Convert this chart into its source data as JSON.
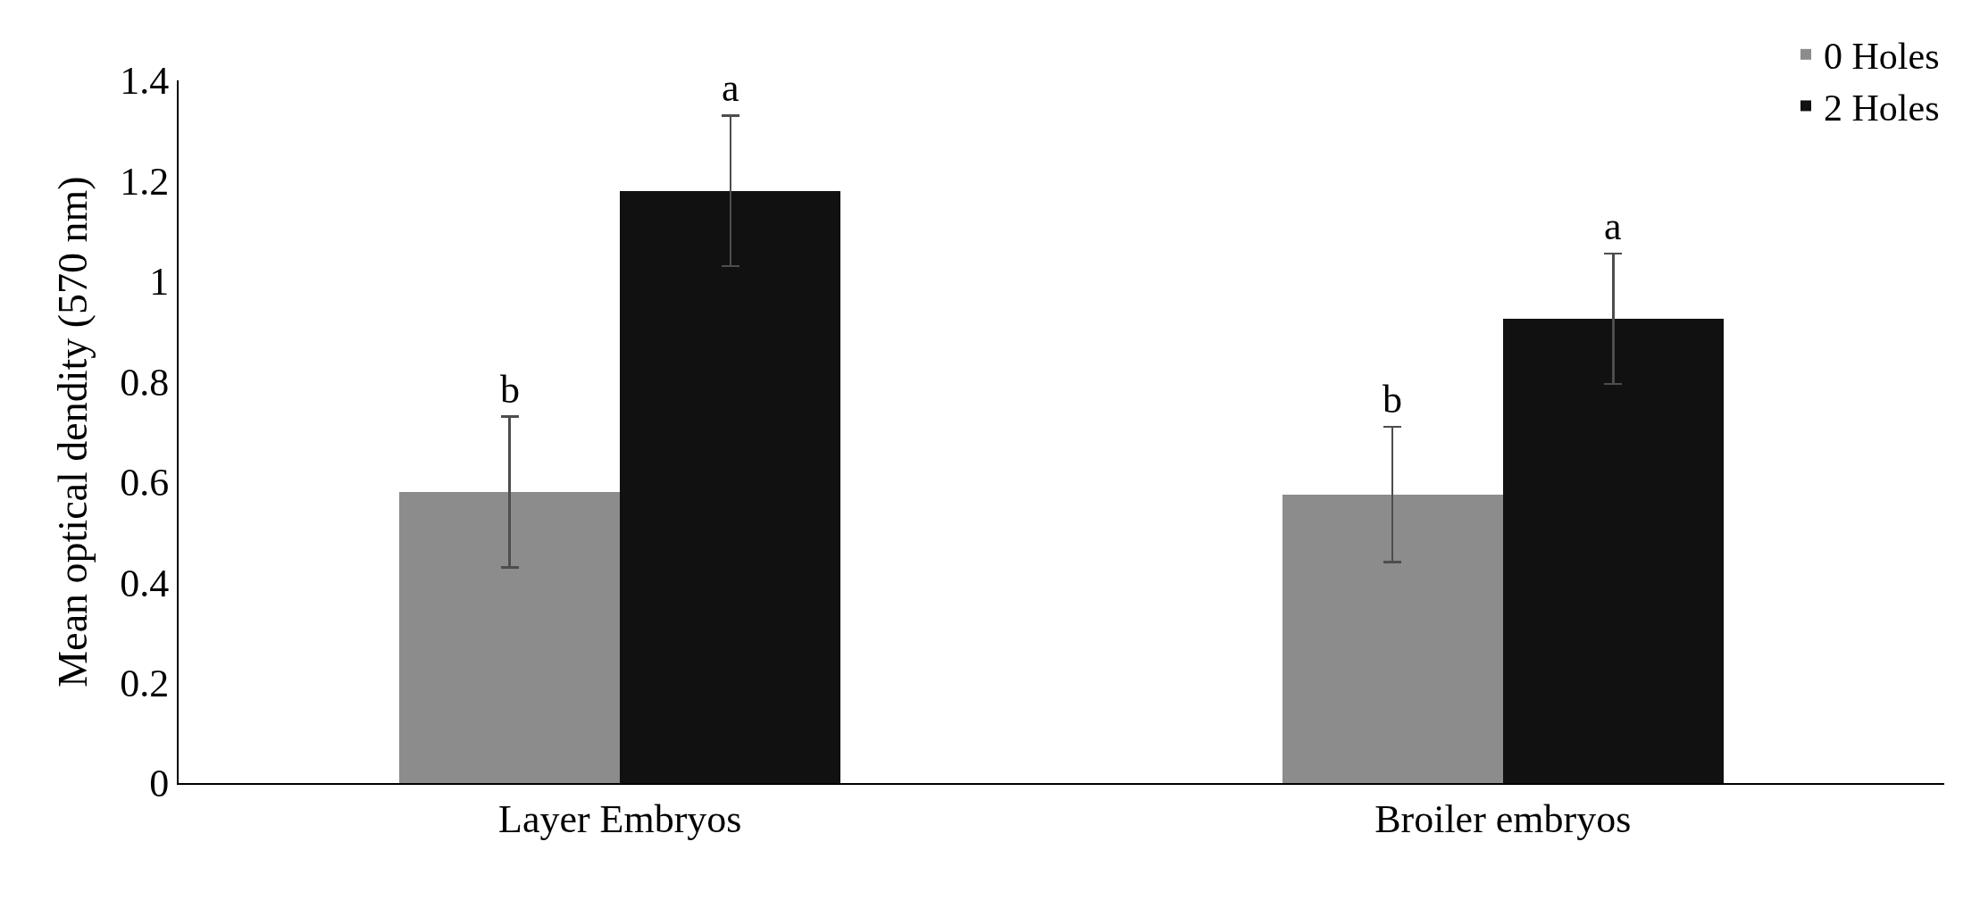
{
  "chart_data": {
    "type": "bar",
    "ylabel": "Mean optical dendity (570 nm)",
    "categories": [
      "Layer Embryos",
      "Broiler embryos"
    ],
    "series": [
      {
        "name": "0 Holes",
        "color": "#8c8c8c",
        "values": [
          0.58,
          0.575
        ],
        "errors": [
          0.15,
          0.135
        ]
      },
      {
        "name": "2 Holes",
        "color": "#111111",
        "values": [
          1.18,
          0.925
        ],
        "errors": [
          0.15,
          0.13
        ]
      }
    ],
    "annotations": [
      "b",
      "a",
      "b",
      "a"
    ],
    "ylim": [
      0,
      1.4
    ],
    "yticks": [
      0,
      0.2,
      0.4,
      0.6,
      0.8,
      1,
      1.2,
      1.4
    ],
    "grid": false,
    "legend": "top right"
  }
}
